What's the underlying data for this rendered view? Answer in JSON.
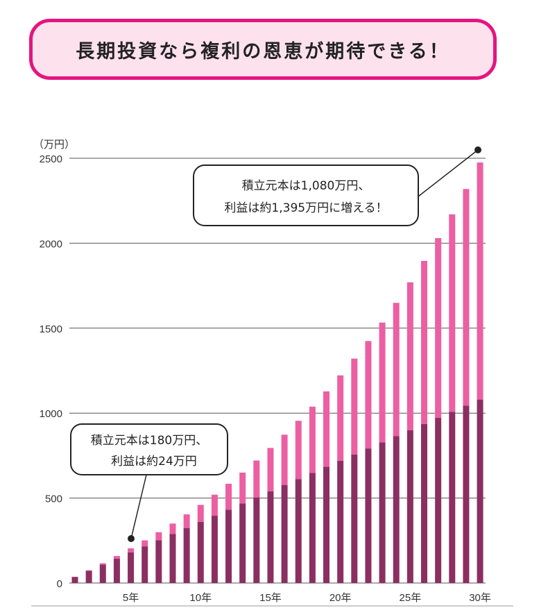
{
  "title": "長期投資なら複利の恩恵が期待できる！",
  "chart_data": {
    "type": "bar",
    "stacked": true,
    "unit_label": "（万円）",
    "x": [
      1,
      2,
      3,
      4,
      5,
      6,
      7,
      8,
      9,
      10,
      11,
      12,
      13,
      14,
      15,
      16,
      17,
      18,
      19,
      20,
      21,
      22,
      23,
      24,
      25,
      26,
      27,
      28,
      29,
      30
    ],
    "xtick_labels": [
      {
        "year": 5,
        "label": "5年"
      },
      {
        "year": 10,
        "label": "10年"
      },
      {
        "year": 15,
        "label": "15年"
      },
      {
        "year": 20,
        "label": "20年"
      },
      {
        "year": 25,
        "label": "25年"
      },
      {
        "year": 30,
        "label": "30年"
      }
    ],
    "ylim": [
      0,
      2500
    ],
    "yticks": [
      "0",
      "500",
      "1000",
      "1500",
      "2000",
      "2500"
    ],
    "ytick_values": [
      0,
      500,
      1000,
      1500,
      2000,
      2500
    ],
    "grid": true,
    "series": [
      {
        "name": "積立元本",
        "color": "#8b2f62",
        "values": [
          36,
          72,
          108,
          144,
          180,
          216,
          252,
          288,
          324,
          360,
          396,
          432,
          468,
          504,
          540,
          576,
          612,
          648,
          684,
          720,
          756,
          792,
          828,
          864,
          900,
          936,
          972,
          1008,
          1044,
          1080
        ]
      },
      {
        "name": "利益",
        "color": "#ec5fa3",
        "values": [
          1,
          3,
          8,
          15,
          24,
          35,
          47,
          62,
          80,
          100,
          124,
          152,
          182,
          217,
          255,
          297,
          343,
          390,
          444,
          502,
          565,
          632,
          705,
          785,
          870,
          960,
          1058,
          1162,
          1275,
          1395
        ]
      }
    ],
    "annotations": [
      {
        "year": 5,
        "lines": [
          "積立元本は180万円、",
          "利益は約24万円"
        ]
      },
      {
        "year": 30,
        "lines": [
          "積立元本は1,080万円、",
          "利益は約1,395万円に増える！"
        ]
      }
    ]
  }
}
